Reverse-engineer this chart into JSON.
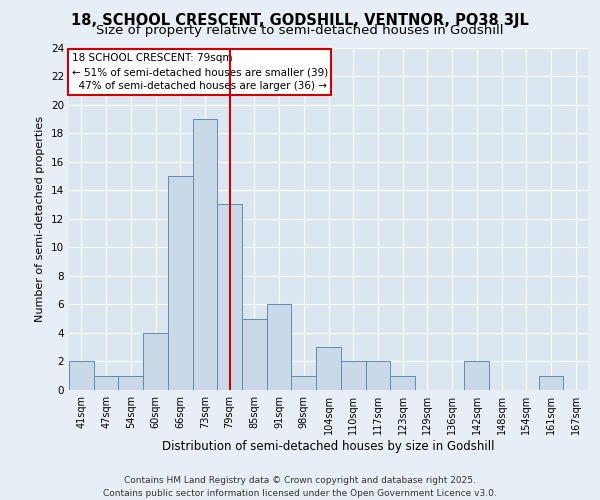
{
  "title": "18, SCHOOL CRESCENT, GODSHILL, VENTNOR, PO38 3JL",
  "subtitle": "Size of property relative to semi-detached houses in Godshill",
  "xlabel": "Distribution of semi-detached houses by size in Godshill",
  "ylabel": "Number of semi-detached properties",
  "categories": [
    "41sqm",
    "47sqm",
    "54sqm",
    "60sqm",
    "66sqm",
    "73sqm",
    "79sqm",
    "85sqm",
    "91sqm",
    "98sqm",
    "104sqm",
    "110sqm",
    "117sqm",
    "123sqm",
    "129sqm",
    "136sqm",
    "142sqm",
    "148sqm",
    "154sqm",
    "161sqm",
    "167sqm"
  ],
  "values": [
    2,
    1,
    1,
    4,
    15,
    19,
    13,
    5,
    6,
    1,
    3,
    2,
    2,
    1,
    0,
    0,
    2,
    0,
    0,
    1,
    0
  ],
  "bar_color": "#c9d9e8",
  "bar_edge_color": "#5b8db0",
  "ref_line_index": 6,
  "ylim": [
    0,
    24
  ],
  "yticks": [
    0,
    2,
    4,
    6,
    8,
    10,
    12,
    14,
    16,
    18,
    20,
    22,
    24
  ],
  "background_color": "#e8eef5",
  "bar_area_bg": "#dce6f0",
  "property_label": "18 SCHOOL CRESCENT: 79sqm",
  "pct_smaller": 51,
  "count_smaller": 39,
  "pct_larger": 47,
  "count_larger": 36,
  "footer": "Contains HM Land Registry data © Crown copyright and database right 2025.\nContains public sector information licensed under the Open Government Licence v3.0.",
  "title_fontsize": 10.5,
  "subtitle_fontsize": 9.5,
  "ylabel_fontsize": 8,
  "xlabel_fontsize": 8.5,
  "tick_fontsize": 7,
  "annot_fontsize": 7.5,
  "footer_fontsize": 6.5
}
